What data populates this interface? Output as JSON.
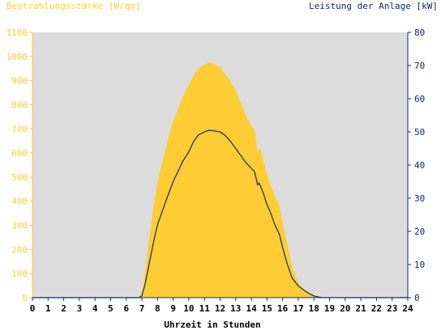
{
  "chart_data": {
    "type": "area",
    "title_left": "Bestrahlungsstärke [W/qm]",
    "title_right": "Leistung der Anlage [kW]",
    "xlabel": "Uhrzeit in Stunden",
    "xlim": [
      0,
      24
    ],
    "x_ticks": [
      "0",
      "1",
      "2",
      "3",
      "4",
      "5",
      "6",
      "7",
      "8",
      "9",
      "10",
      "11",
      "12",
      "13",
      "14",
      "15",
      "16",
      "17",
      "18",
      "19",
      "20",
      "21",
      "22",
      "23",
      "24"
    ],
    "y_left": {
      "lim": [
        0,
        1100
      ],
      "ticks": [
        "0",
        "100",
        "200",
        "300",
        "400",
        "500",
        "600",
        "700",
        "800",
        "900",
        "1000",
        "1100"
      ]
    },
    "y_right": {
      "lim": [
        0,
        80
      ],
      "ticks": [
        "0",
        "10",
        "20",
        "30",
        "40",
        "50",
        "60",
        "70",
        "80"
      ]
    },
    "colors": {
      "plot_bg": "#dcdcdc",
      "irradiance": "#ffcc33",
      "power": "#0d2a6b",
      "left_axis": "#ffcc33",
      "right_axis": "#0d2a6b"
    },
    "series": [
      {
        "name": "Bestrahlungsstärke [W/qm]",
        "axis": "left",
        "style": "area",
        "x": [
          0,
          6.8,
          7.0,
          7.2,
          7.5,
          7.8,
          8.0,
          8.3,
          8.6,
          9.0,
          9.3,
          9.6,
          10.0,
          10.3,
          10.6,
          11.0,
          11.3,
          11.6,
          12.0,
          12.3,
          12.6,
          13.0,
          13.3,
          13.6,
          14.0,
          14.2,
          14.4,
          14.5,
          14.6,
          14.8,
          15.0,
          15.2,
          15.5,
          15.8,
          16.0,
          16.3,
          16.6,
          17.0,
          17.3,
          17.6,
          18.0,
          18.3,
          18.5,
          24
        ],
        "y": [
          0,
          0,
          20,
          100,
          260,
          400,
          480,
          560,
          640,
          730,
          780,
          830,
          880,
          920,
          950,
          965,
          975,
          970,
          955,
          930,
          900,
          860,
          810,
          760,
          710,
          700,
          600,
          620,
          610,
          560,
          510,
          470,
          420,
          380,
          310,
          220,
          130,
          60,
          40,
          25,
          10,
          4,
          0,
          0
        ]
      },
      {
        "name": "Leistung der Anlage [kW]",
        "axis": "right",
        "style": "line",
        "x": [
          0,
          6.8,
          7.0,
          7.2,
          7.5,
          7.8,
          8.0,
          8.3,
          8.6,
          9.0,
          9.3,
          9.6,
          10.0,
          10.3,
          10.6,
          11.0,
          11.3,
          11.6,
          12.0,
          12.3,
          12.6,
          13.0,
          13.3,
          13.6,
          14.0,
          14.2,
          14.4,
          14.5,
          14.6,
          14.8,
          15.0,
          15.2,
          15.5,
          15.8,
          16.0,
          16.3,
          16.6,
          17.0,
          17.3,
          17.6,
          18.0,
          18.3,
          18.5,
          24
        ],
        "y": [
          0,
          0,
          0.5,
          4,
          11,
          18,
          22,
          26,
          30,
          35,
          38,
          41,
          44,
          47,
          49,
          50,
          50.5,
          50.3,
          50,
          49,
          47.5,
          45,
          43,
          41,
          39,
          38,
          34,
          34.5,
          33.5,
          31,
          28,
          26,
          22,
          19,
          15,
          10,
          6,
          3.5,
          2.5,
          1.5,
          0.5,
          0.2,
          0,
          0
        ]
      }
    ]
  }
}
